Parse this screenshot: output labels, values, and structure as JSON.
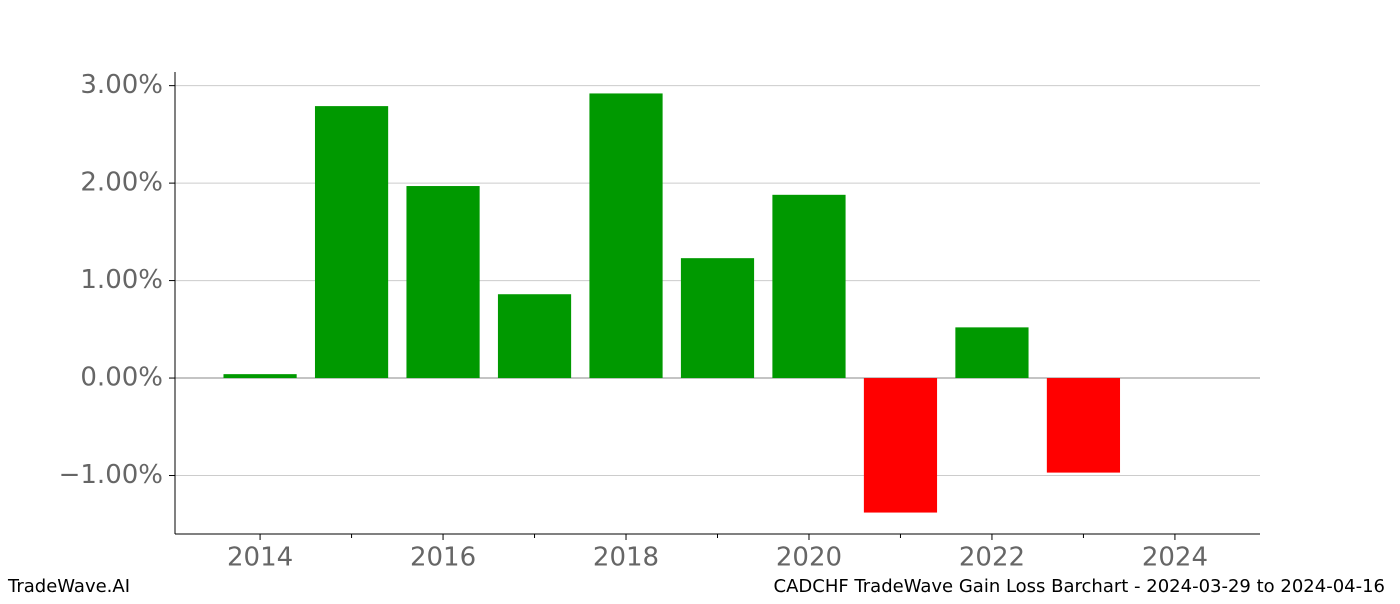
{
  "chart_data": {
    "type": "bar",
    "title": "CADCHF TradeWave Gain Loss Barchart - 2024-03-29 to 2024-04-16",
    "brand": "TradeWave.AI",
    "x": [
      2014,
      2015,
      2016,
      2017,
      2018,
      2019,
      2020,
      2021,
      2022,
      2023
    ],
    "values": [
      0.04,
      2.79,
      1.97,
      0.86,
      2.92,
      1.23,
      1.88,
      -1.38,
      0.52,
      -0.97
    ],
    "positive_color": "#009900",
    "negative_color": "#ff0000",
    "xlim": [
      2013.07,
      2024.93
    ],
    "xticks": [
      2014,
      2016,
      2018,
      2020,
      2022,
      2024
    ],
    "ylim": [
      -1.6,
      3.14
    ],
    "yticks": [
      {
        "value": -1,
        "label": "−1.00%"
      },
      {
        "value": 0,
        "label": "0.00%"
      },
      {
        "value": 1,
        "label": "1.00%"
      },
      {
        "value": 2,
        "label": "2.00%"
      },
      {
        "value": 3,
        "label": "3.00%"
      }
    ],
    "grid": true
  }
}
